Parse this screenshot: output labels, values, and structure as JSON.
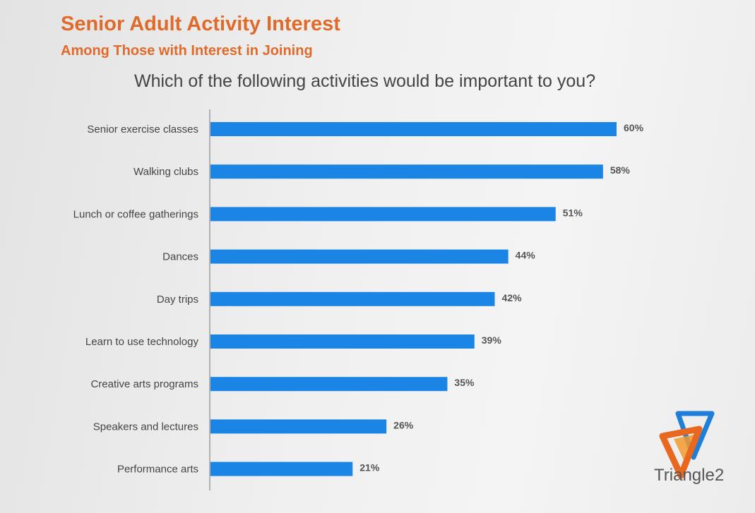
{
  "header": {
    "title": "Senior Adult Activity Interest",
    "subtitle": "Among Those with Interest in Joining",
    "question": "Which of the following activities would be important to you?"
  },
  "brand": {
    "logo_icon": "triangle-logo-icon",
    "name": "Triangle2",
    "colors": [
      "#e8681f",
      "#1f7fd8",
      "#f29a2e"
    ]
  },
  "chart_data": {
    "type": "bar",
    "orientation": "horizontal",
    "title": "Senior Adult Activity Interest",
    "subtitle": "Among Those with Interest in Joining",
    "question": "Which of the following activities would be important to you?",
    "categories": [
      "Senior exercise classes",
      "Walking clubs",
      "Lunch or coffee gatherings",
      "Dances",
      "Day trips",
      "Learn to use technology",
      "Creative arts programs",
      "Speakers and lectures",
      "Performance arts"
    ],
    "values": [
      60,
      58,
      51,
      44,
      42,
      39,
      35,
      26,
      21
    ],
    "value_labels": [
      "60%",
      "58%",
      "51%",
      "44%",
      "42%",
      "39%",
      "35%",
      "26%",
      "21%"
    ],
    "unit": "%",
    "xlim": [
      0,
      60
    ],
    "bar_color": "#1b85e6",
    "grid": false,
    "legend": "none"
  }
}
